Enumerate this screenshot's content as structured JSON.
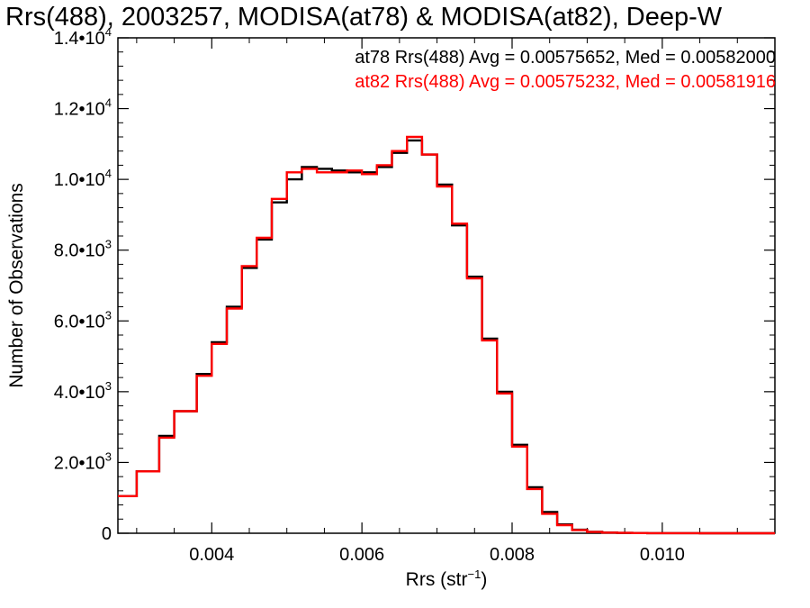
{
  "chart_data": {
    "type": "line",
    "title": "Rrs(488), 2003257, MODISA(at78) & MODISA(at82), Deep-W",
    "xlabel": "Rrs (str",
    "xlabel_sup": "−1",
    "xlabel_close": ")",
    "ylabel": "Number of Observations",
    "xlim": [
      0.00275,
      0.0115
    ],
    "ylim": [
      0,
      14000
    ],
    "x_ticks": [
      {
        "value": 0.004,
        "label": "0.004"
      },
      {
        "value": 0.006,
        "label": "0.006"
      },
      {
        "value": 0.008,
        "label": "0.008"
      },
      {
        "value": 0.01,
        "label": "0.010"
      }
    ],
    "y_ticks": [
      {
        "value": 0,
        "mantissa": "0",
        "exp": ""
      },
      {
        "value": 2000,
        "mantissa": "2.0•10",
        "exp": "3"
      },
      {
        "value": 4000,
        "mantissa": "4.0•10",
        "exp": "3"
      },
      {
        "value": 6000,
        "mantissa": "6.0•10",
        "exp": "3"
      },
      {
        "value": 8000,
        "mantissa": "8.0•10",
        "exp": "3"
      },
      {
        "value": 10000,
        "mantissa": "1.0•10",
        "exp": "4"
      },
      {
        "value": 12000,
        "mantissa": "1.2•10",
        "exp": "4"
      },
      {
        "value": 14000,
        "mantissa": "1.4•10",
        "exp": "4"
      }
    ],
    "legend_placement": "top-right",
    "grid": false,
    "series": [
      {
        "name": "at78",
        "legend": "at78 Rrs(488) Avg = 0.00575652, Med = 0.00582000",
        "color": "#000000",
        "x": [
          0.00275,
          0.003,
          0.0033,
          0.0035,
          0.0038,
          0.004,
          0.0042,
          0.0044,
          0.0046,
          0.0048,
          0.005,
          0.0052,
          0.0054,
          0.0056,
          0.0058,
          0.006,
          0.0062,
          0.0064,
          0.0066,
          0.0068,
          0.007,
          0.0072,
          0.0074,
          0.0076,
          0.0078,
          0.008,
          0.0082,
          0.0084,
          0.0086,
          0.0088,
          0.009,
          0.0092,
          0.0094,
          0.0096,
          0.0098,
          0.01,
          0.0105,
          0.011,
          0.0115
        ],
        "y": [
          1050,
          1750,
          2750,
          3450,
          4500,
          5400,
          6400,
          7500,
          8300,
          9350,
          10000,
          10350,
          10300,
          10250,
          10200,
          10200,
          10350,
          10750,
          11100,
          10700,
          9850,
          8700,
          7250,
          5500,
          4000,
          2500,
          1300,
          600,
          250,
          100,
          40,
          20,
          10,
          5,
          3,
          2,
          1,
          0,
          0
        ]
      },
      {
        "name": "at82",
        "legend": "at82 Rrs(488) Avg = 0.00575232, Med = 0.00581916",
        "color": "#ff0000",
        "x": [
          0.00275,
          0.003,
          0.0033,
          0.0035,
          0.0038,
          0.004,
          0.0042,
          0.0044,
          0.0046,
          0.0048,
          0.005,
          0.0052,
          0.0054,
          0.0056,
          0.0058,
          0.006,
          0.0062,
          0.0064,
          0.0066,
          0.0068,
          0.007,
          0.0072,
          0.0074,
          0.0076,
          0.0078,
          0.008,
          0.0082,
          0.0084,
          0.0086,
          0.0088,
          0.009,
          0.0092,
          0.0094,
          0.0096,
          0.0098,
          0.01,
          0.0105,
          0.011,
          0.0115
        ],
        "y": [
          1050,
          1750,
          2700,
          3450,
          4450,
          5350,
          6350,
          7550,
          8350,
          9450,
          10200,
          10300,
          10200,
          10200,
          10250,
          10150,
          10400,
          10800,
          11200,
          10700,
          9800,
          8750,
          7200,
          5450,
          3950,
          2450,
          1250,
          550,
          230,
          90,
          35,
          18,
          9,
          5,
          3,
          2,
          1,
          0,
          0
        ]
      }
    ]
  }
}
